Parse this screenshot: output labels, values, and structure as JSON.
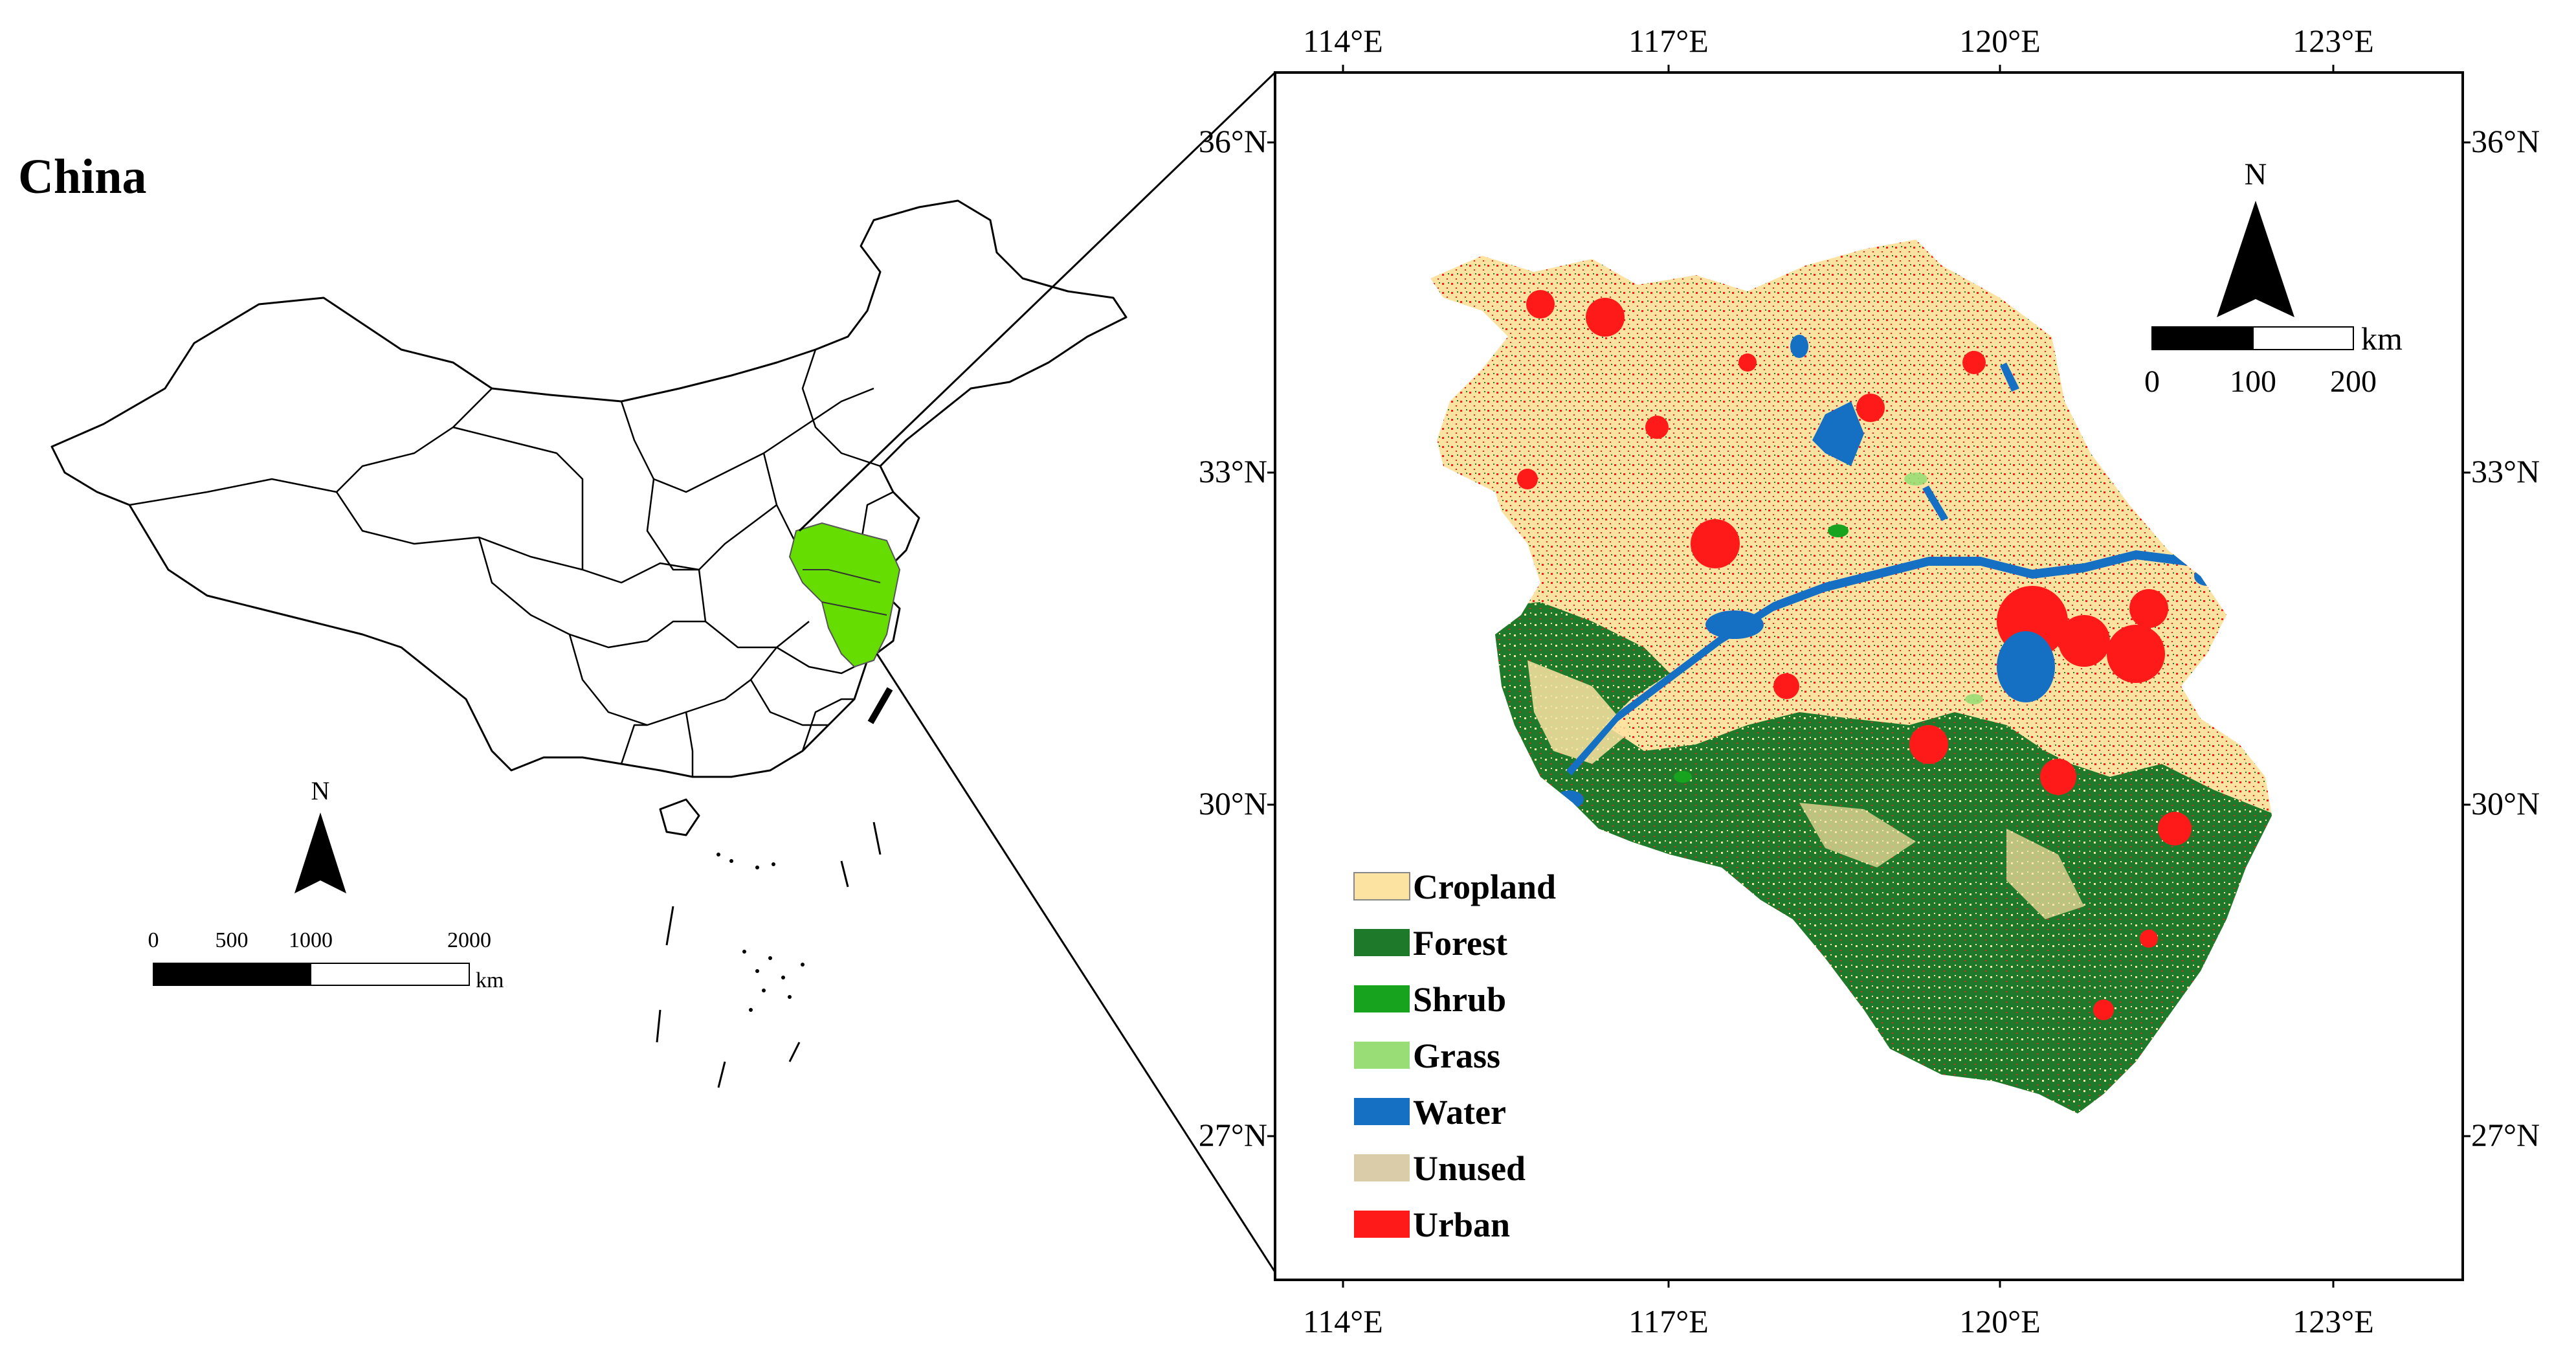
{
  "overview": {
    "title": "China",
    "north_label": "N",
    "scale": {
      "ticks": [
        "0",
        "500",
        "1000",
        "2000"
      ],
      "unit": "km"
    }
  },
  "detail": {
    "lon_labels": [
      "114°E",
      "117°E",
      "120°E",
      "123°E"
    ],
    "lat_labels": [
      "36°N",
      "33°N",
      "30°N",
      "27°N"
    ],
    "north_label": "N",
    "scale": {
      "ticks": [
        "0",
        "100",
        "200"
      ],
      "unit": "km"
    }
  },
  "legend": {
    "items": [
      {
        "label": "Cropland",
        "color": "#fde3a2"
      },
      {
        "label": "Forest",
        "color": "#1e7a2a"
      },
      {
        "label": "Shrub",
        "color": "#17a31e"
      },
      {
        "label": "Grass",
        "color": "#99dd77"
      },
      {
        "label": "Water",
        "color": "#1570c4"
      },
      {
        "label": "Unused",
        "color": "#dacca8"
      },
      {
        "label": "Urban",
        "color": "#ff1a1a"
      }
    ]
  },
  "colors": {
    "highlight": "#66dd00",
    "outline": "#000000"
  }
}
